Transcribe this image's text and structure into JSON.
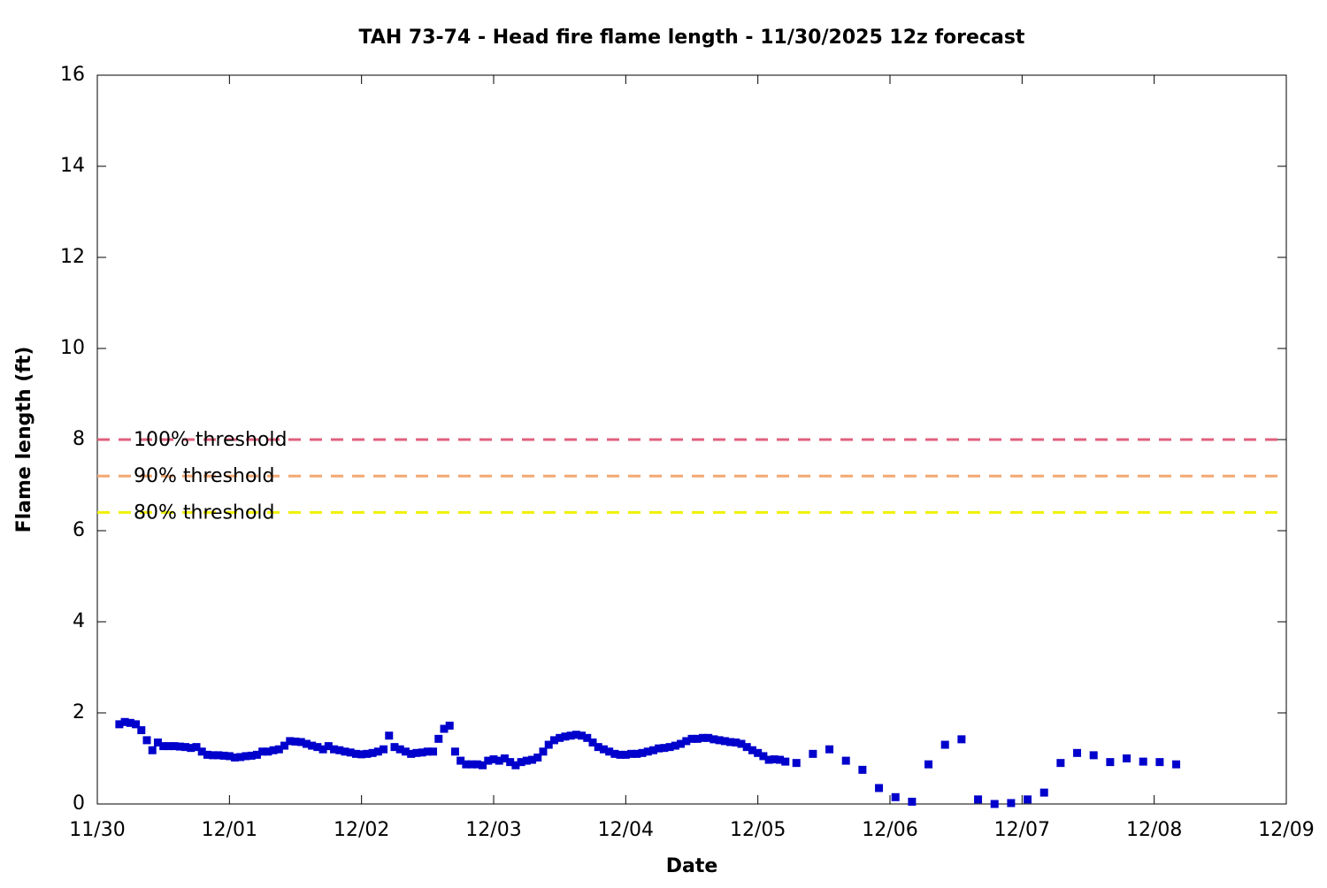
{
  "chart_data": {
    "type": "scatter",
    "title": "TAH 73-74 - Head fire flame length - 11/30/2025 12z forecast",
    "x_label": "Date",
    "y_label": "Flame length (ft)",
    "xlim": [
      0,
      216
    ],
    "ylim": [
      0,
      16
    ],
    "xticks": [
      {
        "value": 0,
        "label": "11/30"
      },
      {
        "value": 24,
        "label": "12/01"
      },
      {
        "value": 48,
        "label": "12/02"
      },
      {
        "value": 72,
        "label": "12/03"
      },
      {
        "value": 96,
        "label": "12/04"
      },
      {
        "value": 120,
        "label": "12/05"
      },
      {
        "value": 144,
        "label": "12/06"
      },
      {
        "value": 168,
        "label": "12/07"
      },
      {
        "value": 192,
        "label": "12/08"
      },
      {
        "value": 216,
        "label": "12/09"
      }
    ],
    "yticks": [
      0,
      2,
      4,
      6,
      8,
      10,
      12,
      14,
      16
    ],
    "thresholds": [
      {
        "label": "100% threshold",
        "value": 8,
        "color": "#e0607e"
      },
      {
        "label": "90% threshold",
        "value": 7.2,
        "color": "#f4a870"
      },
      {
        "label": "80% threshold",
        "value": 6.4,
        "color": "#f0f000"
      }
    ],
    "series": [
      {
        "color": "#0000cc",
        "x": [
          4,
          5,
          6,
          7,
          8,
          9,
          10,
          11,
          12,
          13,
          14,
          15,
          16,
          17,
          18,
          19,
          20,
          21,
          22,
          23,
          24,
          25,
          26,
          27,
          28,
          29,
          30,
          31,
          32,
          33,
          34,
          35,
          36,
          37,
          38,
          39,
          40,
          41,
          42,
          43,
          44,
          45,
          46,
          47,
          48,
          49,
          50,
          51,
          52,
          53,
          54,
          55,
          56,
          57,
          58,
          59,
          60,
          61,
          62,
          63,
          64,
          65,
          66,
          67,
          68,
          69,
          70,
          71,
          72,
          73,
          74,
          75,
          76,
          77,
          78,
          79,
          80,
          81,
          82,
          83,
          84,
          85,
          86,
          87,
          88,
          89,
          90,
          91,
          92,
          93,
          94,
          95,
          96,
          97,
          98,
          99,
          100,
          101,
          102,
          103,
          104,
          105,
          106,
          107,
          108,
          109,
          110,
          111,
          112,
          113,
          114,
          115,
          116,
          117,
          118,
          119,
          120,
          121,
          122,
          123,
          124,
          125,
          127,
          130,
          133,
          136,
          139,
          142,
          145,
          148,
          151,
          154,
          157,
          160,
          163,
          166,
          169,
          172,
          175,
          178,
          181,
          184,
          187,
          190,
          193,
          196
        ],
        "values": [
          1.75,
          1.8,
          1.78,
          1.75,
          1.62,
          1.4,
          1.18,
          1.35,
          1.27,
          1.27,
          1.27,
          1.26,
          1.25,
          1.23,
          1.25,
          1.15,
          1.08,
          1.07,
          1.07,
          1.06,
          1.05,
          1.02,
          1.03,
          1.05,
          1.06,
          1.08,
          1.15,
          1.15,
          1.18,
          1.2,
          1.28,
          1.38,
          1.37,
          1.36,
          1.32,
          1.28,
          1.25,
          1.2,
          1.27,
          1.2,
          1.18,
          1.15,
          1.13,
          1.1,
          1.09,
          1.1,
          1.12,
          1.15,
          1.2,
          1.5,
          1.25,
          1.2,
          1.15,
          1.1,
          1.12,
          1.13,
          1.15,
          1.15,
          1.43,
          1.65,
          1.72,
          1.15,
          0.95,
          0.87,
          0.87,
          0.87,
          0.85,
          0.95,
          0.98,
          0.95,
          1.0,
          0.92,
          0.85,
          0.92,
          0.95,
          0.97,
          1.02,
          1.15,
          1.3,
          1.4,
          1.45,
          1.48,
          1.5,
          1.52,
          1.5,
          1.45,
          1.35,
          1.25,
          1.2,
          1.15,
          1.1,
          1.08,
          1.08,
          1.1,
          1.1,
          1.12,
          1.15,
          1.18,
          1.22,
          1.23,
          1.25,
          1.28,
          1.32,
          1.38,
          1.43,
          1.43,
          1.45,
          1.45,
          1.42,
          1.4,
          1.38,
          1.36,
          1.35,
          1.32,
          1.25,
          1.18,
          1.12,
          1.05,
          0.97,
          0.98,
          0.97,
          0.93,
          0.9,
          1.1,
          1.2,
          0.95,
          0.75,
          0.35,
          0.15,
          0.05,
          0.87,
          1.3,
          1.42,
          0.1,
          0.0,
          0.02,
          0.1,
          0.25,
          0.9,
          1.12,
          1.07,
          0.92,
          1.0,
          0.93,
          0.92,
          0.87
        ]
      }
    ]
  }
}
